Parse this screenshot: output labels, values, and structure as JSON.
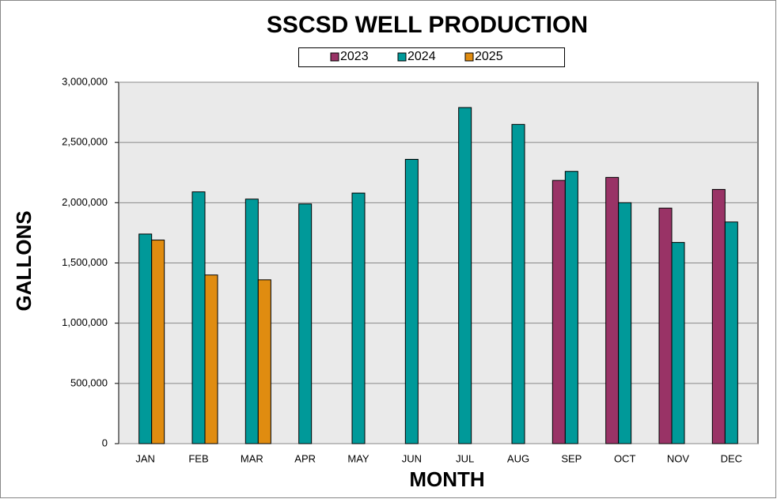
{
  "chart_data": {
    "type": "bar",
    "title": "SSCSD WELL PRODUCTION",
    "x_label": "MONTH",
    "y_label": "GALLONS",
    "categories": [
      "JAN",
      "FEB",
      "MAR",
      "APR",
      "MAY",
      "JUN",
      "JUL",
      "AUG",
      "SEP",
      "OCT",
      "NOV",
      "DEC"
    ],
    "series": [
      {
        "name": "2023",
        "color": "#993366",
        "values": [
          null,
          null,
          null,
          null,
          null,
          null,
          null,
          null,
          2185000,
          2210000,
          1955000,
          2110000
        ]
      },
      {
        "name": "2024",
        "color": "#009999",
        "values": [
          1740000,
          2090000,
          2030000,
          1990000,
          2080000,
          2360000,
          2790000,
          2650000,
          2260000,
          2000000,
          1670000,
          1840000
        ]
      },
      {
        "name": "2025",
        "color": "#e08c10",
        "values": [
          1690000,
          1400000,
          1360000,
          null,
          null,
          null,
          null,
          null,
          null,
          null,
          null,
          null
        ]
      }
    ],
    "ylim": [
      0,
      3000000
    ],
    "yticks": [
      0,
      {
        "value": 500000,
        "label": "500,000"
      },
      {
        "value": 1000000,
        "label": "1,000,000"
      },
      {
        "value": 1500000,
        "label": "1,500,000"
      },
      {
        "value": 2000000,
        "label": "2,000,000"
      },
      {
        "value": 2500000,
        "label": "2,500,000"
      },
      {
        "value": 3000000,
        "label": "3,000,000"
      }
    ],
    "grid": true,
    "legend": "top"
  }
}
